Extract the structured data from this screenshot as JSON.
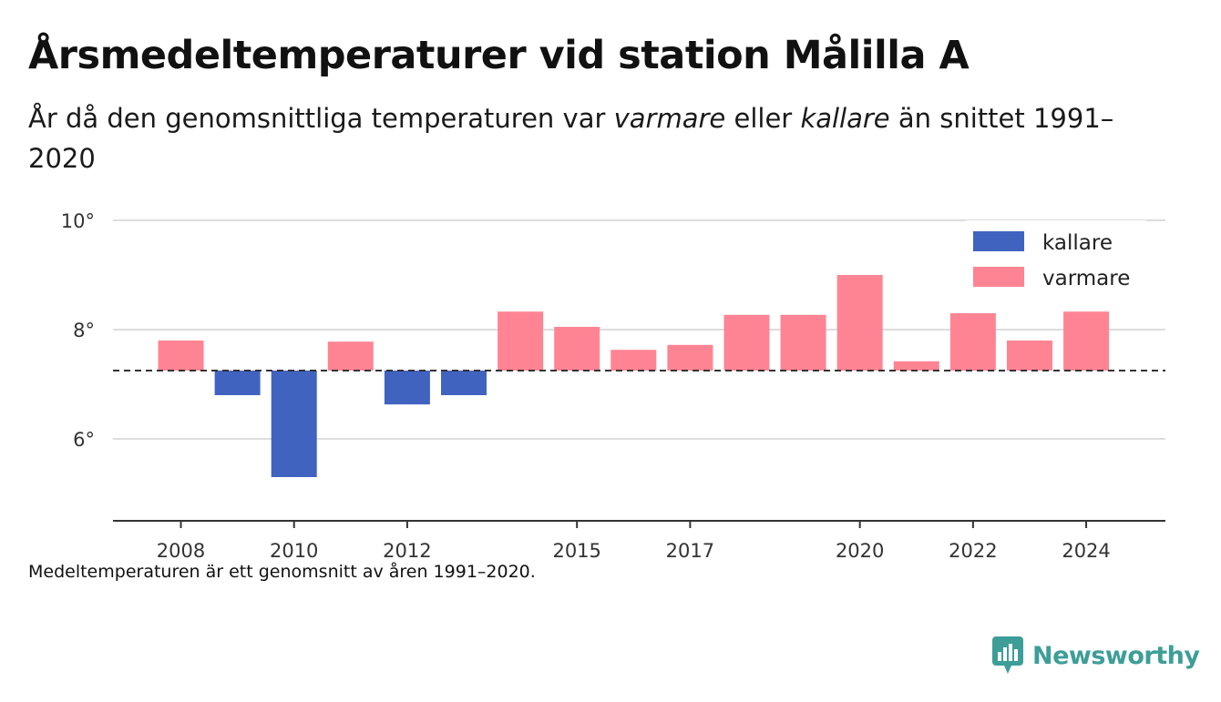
{
  "title": "Årsmedeltemperaturer vid station Målilla A",
  "subtitle": {
    "part1": "År då den genomsnittliga temperaturen var ",
    "warmer_word": "varmare",
    "part2": " eller ",
    "colder_word": "kallare",
    "part3": " än snittet 1991–2020"
  },
  "note": "Medeltemperaturen är ett genomsnitt av åren 1991–2020.",
  "logo_text": "Newsworthy",
  "colors": {
    "colder": "#4163c0",
    "warmer": "#ff8493",
    "grid": "#dddddd",
    "brand": "#3d9e98"
  },
  "chart_data": {
    "type": "bar",
    "title": "Årsmedeltemperaturer vid station Målilla A",
    "xlabel": "",
    "ylabel": "",
    "baseline": 7.25,
    "ylim": [
      4.5,
      10.0
    ],
    "yticks": [
      6,
      8,
      10
    ],
    "ytick_suffix": "°",
    "xlim": [
      2006.8,
      2025.4
    ],
    "xticks": [
      2008,
      2010,
      2012,
      2015,
      2017,
      2020,
      2022,
      2024
    ],
    "grid": true,
    "legend_position": "top-right",
    "legend": [
      {
        "label": "kallare",
        "key": "colder"
      },
      {
        "label": "varmare",
        "key": "warmer"
      }
    ],
    "x": [
      2008,
      2009,
      2010,
      2011,
      2012,
      2013,
      2014,
      2015,
      2016,
      2017,
      2018,
      2019,
      2020,
      2021,
      2022,
      2023,
      2024
    ],
    "values": [
      7.8,
      6.8,
      5.3,
      7.78,
      6.63,
      6.8,
      8.33,
      8.05,
      7.63,
      7.72,
      8.27,
      8.27,
      9.0,
      7.42,
      8.3,
      7.8,
      8.33
    ]
  }
}
